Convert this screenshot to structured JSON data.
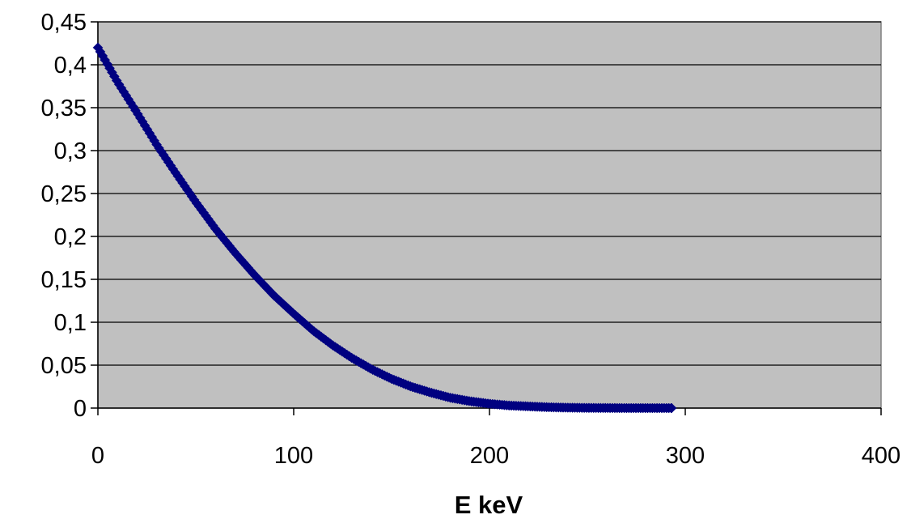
{
  "chart_data": {
    "type": "scatter",
    "title": "",
    "xlabel": "E keV",
    "ylabel": "",
    "xlim": [
      0,
      400
    ],
    "ylim": [
      0,
      0.45
    ],
    "x_ticks": [
      0,
      100,
      200,
      300,
      400
    ],
    "x_tick_labels": [
      "0",
      "100",
      "200",
      "300",
      "400"
    ],
    "y_ticks": [
      0,
      0.05,
      0.1,
      0.15,
      0.2,
      0.25,
      0.3,
      0.35,
      0.4,
      0.45
    ],
    "y_tick_labels": [
      "0",
      "0,05",
      "0,1",
      "0,15",
      "0,2",
      "0,25",
      "0,3",
      "0,35",
      "0,4",
      "0,45"
    ],
    "grid": true,
    "legend": "none",
    "colors": {
      "plot_area": "#c0c0c0",
      "marker": "#000080",
      "grid": "#000000"
    },
    "series": [
      {
        "marker": "diamond",
        "x": [
          0,
          10,
          20,
          30,
          40,
          50,
          60,
          70,
          80,
          90,
          100,
          110,
          120,
          130,
          140,
          150,
          160,
          170,
          180,
          190,
          200,
          210,
          220,
          230,
          240,
          250,
          260,
          270,
          280,
          290,
          293
        ],
        "y": [
          0.42,
          0.38,
          0.344,
          0.307,
          0.273,
          0.24,
          0.209,
          0.181,
          0.155,
          0.131,
          0.11,
          0.09,
          0.073,
          0.058,
          0.045,
          0.034,
          0.025,
          0.018,
          0.012,
          0.008,
          0.005,
          0.003,
          0.002,
          0.001,
          0.0005,
          0.0002,
          0.0001,
          0,
          0,
          0,
          0
        ]
      }
    ]
  }
}
